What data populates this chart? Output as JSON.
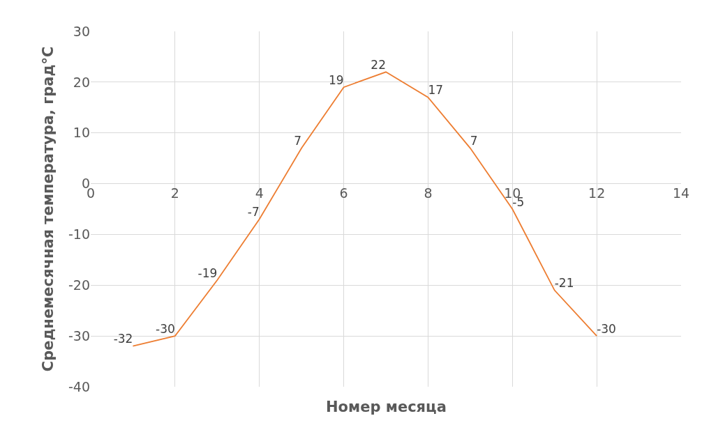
{
  "chart_data": {
    "type": "line",
    "xlabel": "Номер месяца",
    "ylabel": "Среднемесячная температура, град°С",
    "x": [
      1,
      2,
      3,
      4,
      5,
      6,
      7,
      8,
      9,
      10,
      11,
      12
    ],
    "series": [
      {
        "color": "#ed7d31",
        "values": [
          -32,
          -30,
          -19,
          -7,
          7,
          19,
          22,
          17,
          7,
          -5,
          -21,
          -30
        ]
      }
    ],
    "xlim": [
      0,
      14
    ],
    "xticks": [
      0,
      2,
      4,
      6,
      8,
      10,
      12,
      14
    ],
    "ylim": [
      -40,
      30
    ],
    "yticks": [
      -40,
      -30,
      -20,
      -10,
      0,
      10,
      20,
      30
    ],
    "grid": true,
    "data_labels": true,
    "marker": "none",
    "line_style": "solid",
    "legend": false
  }
}
